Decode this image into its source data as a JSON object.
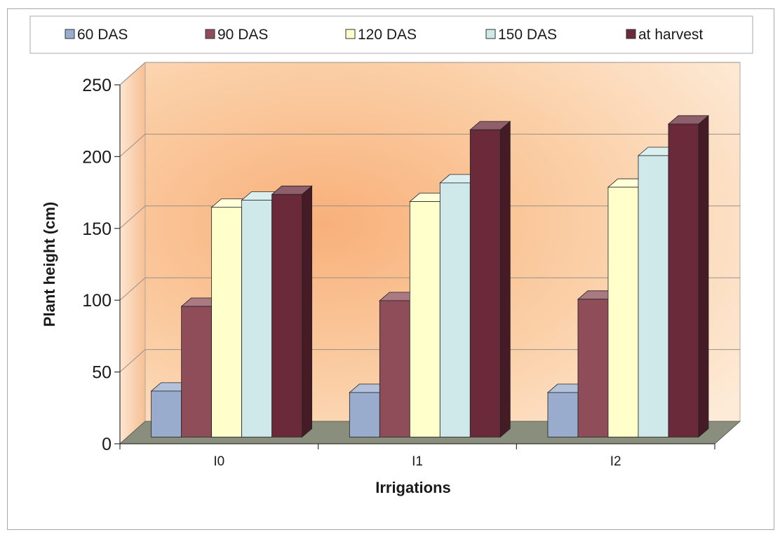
{
  "chart_data": {
    "type": "bar",
    "variant": "3d-clustered-column",
    "title": "",
    "xlabel": "Irrigations",
    "ylabel": "Plant height (cm)",
    "ylim": [
      0,
      250
    ],
    "yticks": [
      0,
      50,
      100,
      150,
      200,
      250
    ],
    "grid": true,
    "legend_position": "top",
    "categories": [
      "I0",
      "I1",
      "I2"
    ],
    "series": [
      {
        "name": "60 DAS",
        "values": [
          32,
          31,
          31
        ],
        "color": "#9aaccd"
      },
      {
        "name": "90 DAS",
        "values": [
          91,
          95,
          96
        ],
        "color": "#8e4d58"
      },
      {
        "name": "120 DAS",
        "values": [
          160,
          164,
          174
        ],
        "color": "#ffffcc"
      },
      {
        "name": "150 DAS",
        "values": [
          165,
          177,
          196
        ],
        "color": "#cfe9ea"
      },
      {
        "name": "at harvest",
        "values": [
          169,
          214,
          218
        ],
        "color": "#6a2a3a"
      }
    ]
  }
}
